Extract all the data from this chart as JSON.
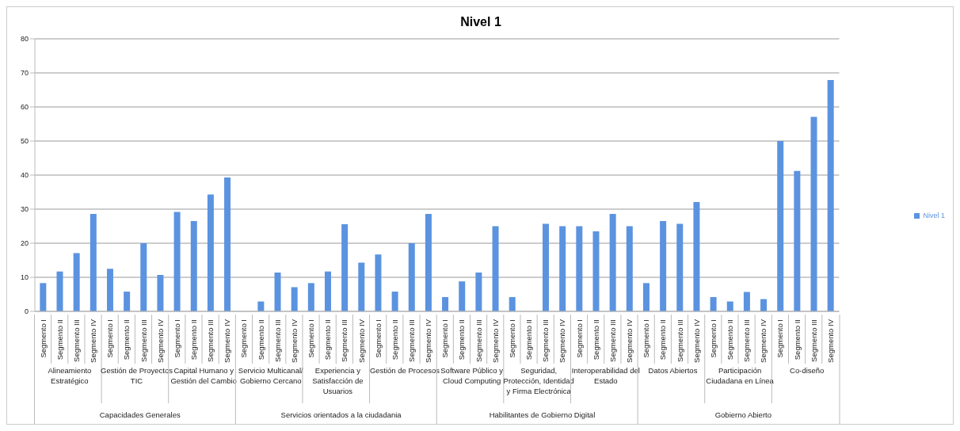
{
  "chart_data": {
    "type": "bar",
    "title": "Nivel 1",
    "categories": [
      "Segmento I",
      "Segmento II",
      "Segmento III",
      "Segmento IV",
      "Segmento I",
      "Segmento II",
      "Segmento III",
      "Segmento IV",
      "Segmento I",
      "Segmento II",
      "Segmento III",
      "Segmento IV",
      "Segmento I",
      "Segmento II",
      "Segmento III",
      "Segmento IV",
      "Segmento I",
      "Segmento II",
      "Segmento III",
      "Segmento IV",
      "Segmento I",
      "Segmento II",
      "Segmento III",
      "Segmento IV",
      "Segmento I",
      "Segmento II",
      "Segmento III",
      "Segmento IV",
      "Segmento I",
      "Segmento II",
      "Segmento III",
      "Segmento IV",
      "Segmento I",
      "Segmento II",
      "Segmento III",
      "Segmento IV",
      "Segmento I",
      "Segmento II",
      "Segmento III",
      "Segmento IV",
      "Segmento I",
      "Segmento II",
      "Segmento III",
      "Segmento IV",
      "Segmento I",
      "Segmento II",
      "Segmento III",
      "Segmento IV"
    ],
    "series": [
      {
        "name": "Nivel 1",
        "color": "#5b93e0",
        "values": [
          8.3,
          11.7,
          17.1,
          28.6,
          12.5,
          5.8,
          20,
          10.7,
          29.2,
          26.5,
          34.3,
          39.3,
          0,
          2.9,
          11.4,
          7.1,
          8.3,
          11.7,
          25.6,
          14.3,
          16.7,
          5.8,
          20,
          28.6,
          4.2,
          8.8,
          11.4,
          25,
          4.2,
          0,
          25.7,
          25,
          25,
          23.5,
          28.6,
          25,
          8.3,
          26.5,
          25.7,
          32.1,
          4.2,
          2.9,
          5.7,
          3.6,
          50,
          41.2,
          57.1,
          67.9
        ]
      }
    ],
    "annotations": [
      "Alineamiento Estratégico",
      "Gestión de Proyectos TIC",
      "Capital Humano y Gestión del Cambio",
      "Servicio Multicanal/ Gobierno Cercano",
      "Experiencia y Satisfacción de Usuarios",
      "Gestión de Procesos",
      "Software Público y Cloud Computing",
      "Seguridad, Protección, Identidad y Firma Electrónica",
      "Interoperabilidad del Estado",
      "Datos Abiertos",
      "Participación Ciudadana en Línea",
      "Co-diseño",
      "Capacidades Generales",
      "Servicios orientados a la ciudadania",
      "Habilitantes de Gobierno Digital",
      "Gobierno Abierto"
    ],
    "ylim": [
      0,
      80
    ],
    "yticks": [
      0,
      10,
      20,
      30,
      40,
      50,
      60,
      70,
      80
    ],
    "grid": "y",
    "legend": "right"
  }
}
